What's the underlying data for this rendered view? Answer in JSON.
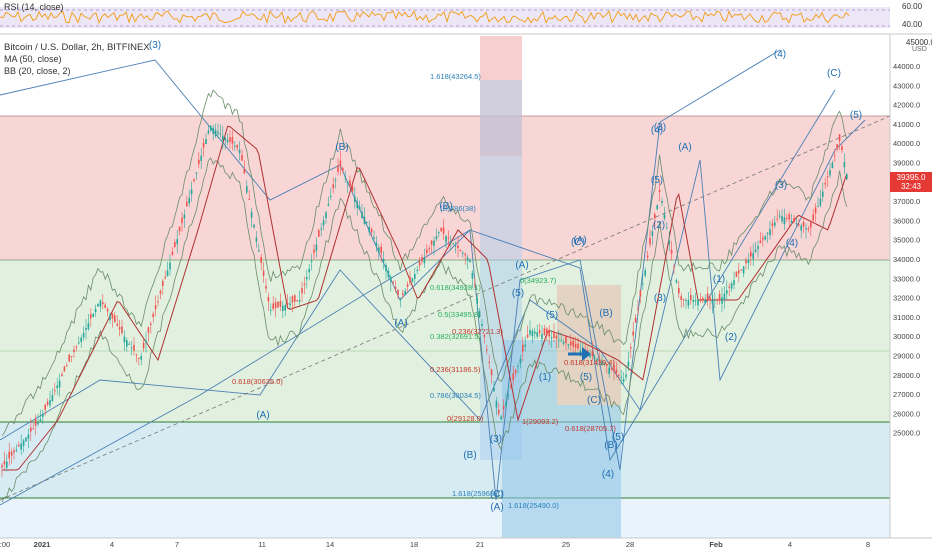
{
  "rsi": {
    "label": "RSI (14, close)",
    "levels": [
      "60.00",
      "40.00"
    ]
  },
  "legend": {
    "title": "Bitcoin / U.S. Dollar, 2h, BITFINEX",
    "ma": "MA (50, close)",
    "bb": "BB (20, close, 2)"
  },
  "price_axis": {
    "currency": "USD",
    "top_label": "45000.0",
    "ticks": [
      "44000.0",
      "43000.0",
      "42000.0",
      "41000.0",
      "40000.0",
      "39000.0",
      "38000.0",
      "37000.0",
      "36000.0",
      "35000.0",
      "34000.0",
      "33000.0",
      "32000.0",
      "31000.0",
      "30000.0",
      "29000.0",
      "28000.0",
      "27000.0",
      "26000.0",
      "25000.0"
    ],
    "current_price": "39395.0",
    "countdown": "32:43"
  },
  "time_axis": {
    "ticks": [
      ":00",
      "2021",
      "4",
      "7",
      "11",
      "14",
      "18",
      "21",
      "25",
      "28",
      "Feb",
      "4",
      "8"
    ]
  },
  "waves": [
    "(3)",
    "(A)",
    "(B)",
    "(A)",
    "(B)",
    "(A)",
    "(C)",
    "(A)",
    "(B)",
    "(C)",
    "(4)",
    "(5)",
    "(3)",
    "(A)",
    "(4)",
    "(5)",
    "(B)",
    "(1)",
    "(2)",
    "(3)",
    "(4)",
    "(5)",
    "(C)",
    "(5)",
    "(B)",
    "(C)",
    "(5)",
    "(3)",
    "(1)",
    "(2)",
    "(3)",
    "(4)",
    "(5)",
    "(A)"
  ],
  "fib_labels": [
    "1.618(43264.5)",
    "1.618(25968.1)",
    "1.618(25490.0)",
    "0(34923.7)",
    "0.618(34928.1)",
    "0.5(33495.8)",
    "0.382(32691.5)",
    "0.236(31186.5)",
    "0.786(30034.5)",
    "0(29128.0)",
    "1(29093.2)",
    "0.618(28705.7)",
    "0.618(30635.0)",
    "0.236(32721.3)",
    "0.618(31439.4)",
    "(B)786(38)"
  ],
  "colors": {
    "red_zone": "#f5c6c6",
    "green_zone": "#d6ecd6",
    "blue_zone": "#d3e6f5",
    "wave_text": "#1e6fb3",
    "fib_red": "#c0392b",
    "fib_green": "#27ae60",
    "fib_blue": "#2980b9",
    "candle_up": "#26a69a",
    "candle_down": "#ef5350",
    "rsi_line": "#f39c12",
    "price_tag": "#e53935"
  }
}
